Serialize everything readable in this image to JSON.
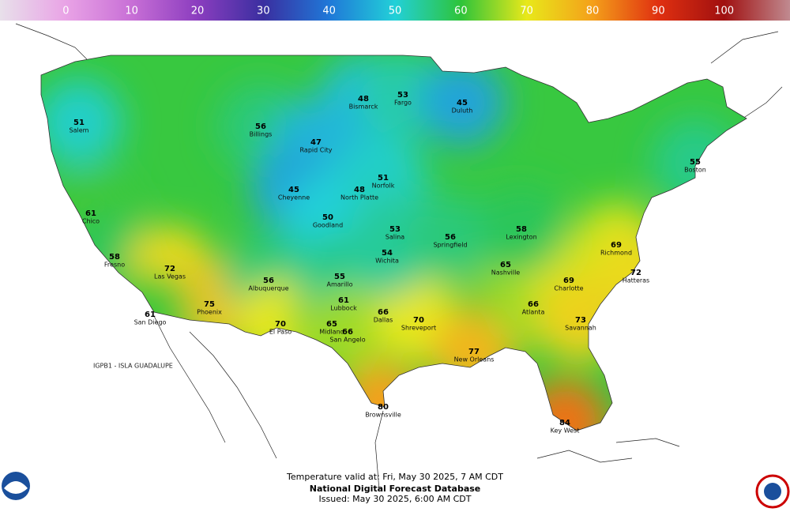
{
  "colorbar": {
    "range": [
      -10,
      110
    ],
    "ticks": [
      0,
      10,
      20,
      30,
      40,
      50,
      60,
      70,
      80,
      90,
      100
    ],
    "colors": [
      "#e8e0ea",
      "#e9a3e6",
      "#c86fd6",
      "#8b3dbf",
      "#3a2fa0",
      "#1f78d8",
      "#22d0d8",
      "#2ec43a",
      "#e8e81a",
      "#f4a01a",
      "#e03010",
      "#a01010",
      "#c08a90"
    ]
  },
  "cities": [
    {
      "name": "Salem",
      "temp": 51
    },
    {
      "name": "Billings",
      "temp": 56
    },
    {
      "name": "Bismarck",
      "temp": 48
    },
    {
      "name": "Fargo",
      "temp": 53
    },
    {
      "name": "Rapid City",
      "temp": 47
    },
    {
      "name": "Cheyenne",
      "temp": 45
    },
    {
      "name": "North Platte",
      "temp": 48
    },
    {
      "name": "Goodland",
      "temp": 50
    },
    {
      "name": "Chico",
      "temp": 61
    },
    {
      "name": "Fresno",
      "temp": 58
    },
    {
      "name": "Las Vegas",
      "temp": 72
    },
    {
      "name": "Phoenix",
      "temp": 75
    },
    {
      "name": "San Diego",
      "temp": 61
    },
    {
      "name": "Albuquerque",
      "temp": 56
    },
    {
      "name": "El Paso",
      "temp": 70
    },
    {
      "name": "Midland",
      "temp": 65
    },
    {
      "name": "Lubbock",
      "temp": 61
    },
    {
      "name": "Amarillo",
      "temp": 55
    },
    {
      "name": "Dallas",
      "temp": 66
    },
    {
      "name": "San Angelo",
      "temp": 66
    },
    {
      "name": "Brownsville",
      "temp": 80
    },
    {
      "name": "Shreveport",
      "temp": 70
    },
    {
      "name": "New Orleans",
      "temp": 77
    },
    {
      "name": "Key West",
      "temp": 84
    },
    {
      "name": "Nashville",
      "temp": 65
    },
    {
      "name": "Atlanta",
      "temp": 66
    },
    {
      "name": "Charlotte",
      "temp": 69
    },
    {
      "name": "Richmond",
      "temp": 69
    },
    {
      "name": "Boston",
      "temp": 55
    },
    {
      "name": "Duluth",
      "temp": 45
    },
    {
      "name": "Norfolk",
      "temp": 51
    },
    {
      "name": "Salina",
      "temp": 53
    },
    {
      "name": "Wichita",
      "temp": 54
    },
    {
      "name": "Springfield",
      "temp": 56
    },
    {
      "name": "Lexington",
      "temp": 58
    },
    {
      "name": "Hatteras",
      "temp": 72
    },
    {
      "name": "Savannah",
      "temp": 73
    }
  ],
  "labels": [
    "IGPB1 - ISLA GUADALUPE"
  ],
  "footer": {
    "valid": "Temperature valid at: Fri, May 30 2025, 7 AM CDT",
    "title": "National Digital Forecast Database",
    "issued": "Issued: May 30 2025, 6:00 AM CDT"
  }
}
